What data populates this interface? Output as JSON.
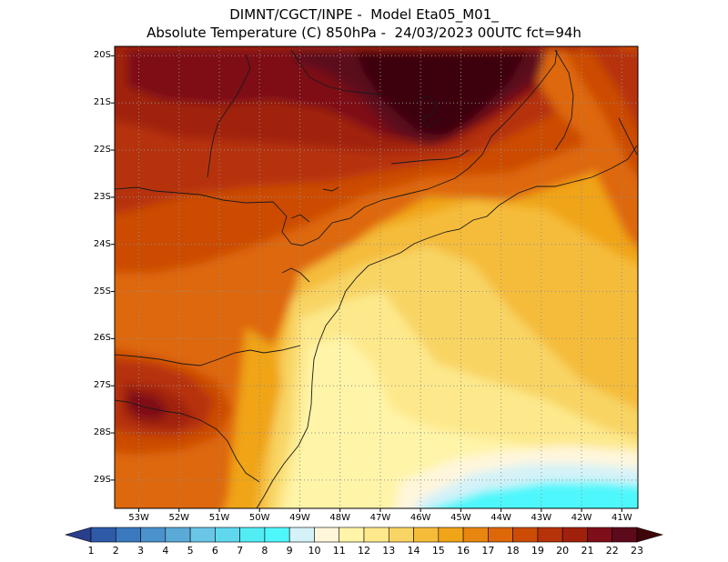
{
  "title": {
    "line1": "DIMNT/CGCT/INPE -  Model Eta05_M01_",
    "line2": "Absolute Temperature (C) 850hPa -  24/03/2023 00UTC fct=94h"
  },
  "map": {
    "lat_labels": [
      "20S",
      "21S",
      "22S",
      "23S",
      "24S",
      "25S",
      "26S",
      "27S",
      "28S",
      "29S"
    ],
    "lon_labels": [
      "53W",
      "52W",
      "51W",
      "50W",
      "49W",
      "48W",
      "47W",
      "46W",
      "45W",
      "44W",
      "43W",
      "42W",
      "41W"
    ],
    "lat_range": [
      -29.6,
      -19.8
    ],
    "lon_range": [
      -53.6,
      -40.6
    ],
    "variable": "Absolute Temperature (C)",
    "level": "850hPa"
  },
  "colorbar": {
    "labels": [
      "1",
      "2",
      "3",
      "4",
      "5",
      "6",
      "7",
      "8",
      "9",
      "10",
      "11",
      "12",
      "13",
      "14",
      "15",
      "16",
      "17",
      "18",
      "19",
      "20",
      "21",
      "22",
      "23"
    ],
    "colors": [
      "#2a3e8e",
      "#2e5aa8",
      "#3a78bf",
      "#4a92cc",
      "#5aaad8",
      "#6ac6e6",
      "#5fd8ee",
      "#52ecf5",
      "#4ef7fb",
      "#d4f2f8",
      "#fff6dc",
      "#fff4a8",
      "#fde98c",
      "#f8d464",
      "#f5bc3a",
      "#f0a418",
      "#e98610",
      "#de6808",
      "#cc4c06",
      "#b63208",
      "#a0200c",
      "#7e0e18",
      "#5c0a1c",
      "#3e0608"
    ]
  }
}
